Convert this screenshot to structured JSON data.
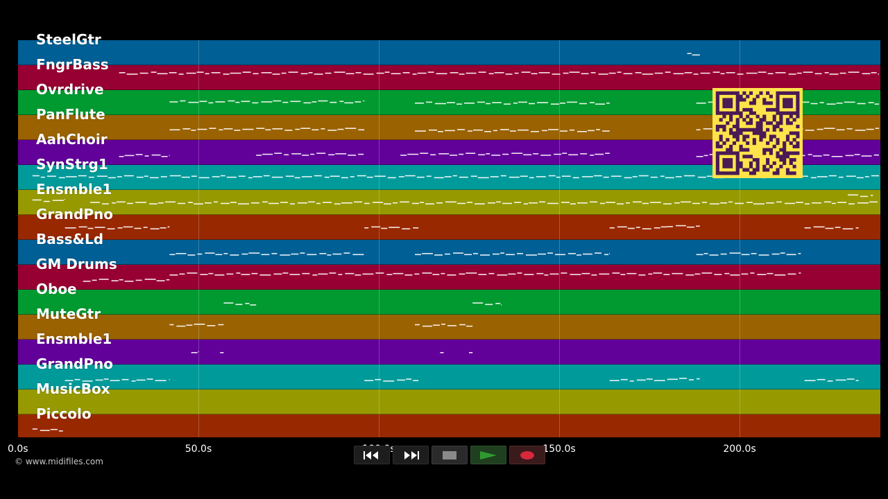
{
  "app": {
    "timeline_unit": "s",
    "copyright": "© www.midifiles.com"
  },
  "tracks": [
    {
      "label": "SteelGtr",
      "color": "#005f94"
    },
    {
      "label": "FngrBass",
      "color": "#970032"
    },
    {
      "label": "Ovrdrive",
      "color": "#009a30"
    },
    {
      "label": "PanFlute",
      "color": "#9a6200"
    },
    {
      "label": "AahChoir",
      "color": "#62009a"
    },
    {
      "label": "SynStrg1",
      "color": "#009a9a"
    },
    {
      "label": "Ensmble1",
      "color": "#969a00"
    },
    {
      "label": "GrandPno",
      "color": "#982800"
    },
    {
      "label": "Bass&Ld",
      "color": "#005f94"
    },
    {
      "label": "GM Drums",
      "color": "#970032"
    },
    {
      "label": "Oboe",
      "color": "#009a30"
    },
    {
      "label": "MuteGtr",
      "color": "#9a6200"
    },
    {
      "label": "Ensmble1",
      "color": "#62009a"
    },
    {
      "label": "GrandPno",
      "color": "#009a9a"
    },
    {
      "label": "MusicBox",
      "color": "#969a00"
    },
    {
      "label": "Piccolo",
      "color": "#982800"
    }
  ],
  "timeline": {
    "max_seconds": 240,
    "ticks": [
      {
        "label": "0.0s",
        "seconds": 0
      },
      {
        "label": "50.0s",
        "seconds": 50
      },
      {
        "label": "100.0s",
        "seconds": 100
      },
      {
        "label": "150.0s",
        "seconds": 150
      },
      {
        "label": "200.0s",
        "seconds": 200
      }
    ]
  },
  "notes_by_track": [
    [
      [
        185.5,
        189,
        0.45
      ]
    ],
    [
      [
        28,
        240,
        0.7
      ]
    ],
    [
      [
        42,
        96,
        0.55
      ],
      [
        110,
        164,
        0.5
      ],
      [
        188,
        240,
        0.5
      ]
    ],
    [
      [
        42,
        96,
        0.45
      ],
      [
        110,
        164,
        0.4
      ],
      [
        188,
        240,
        0.45
      ]
    ],
    [
      [
        28,
        42,
        0.4
      ],
      [
        66,
        96,
        0.45
      ],
      [
        106,
        164,
        0.45
      ],
      [
        188,
        240,
        0.4
      ]
    ],
    [
      [
        4,
        240,
        0.55
      ]
    ],
    [
      [
        4,
        13,
        0.6
      ],
      [
        20,
        240,
        0.5
      ],
      [
        230,
        237,
        0.8
      ]
    ],
    [
      [
        13,
        42,
        0.5
      ],
      [
        96,
        111,
        0.5
      ],
      [
        164,
        180,
        0.5
      ],
      [
        180,
        189,
        0.55
      ],
      [
        218,
        233,
        0.5
      ]
    ],
    [
      [
        42,
        96,
        0.45
      ],
      [
        110,
        164,
        0.45
      ],
      [
        188,
        217,
        0.45
      ]
    ],
    [
      [
        18,
        42,
        0.4
      ],
      [
        42,
        217,
        0.65
      ]
    ],
    [
      [
        57,
        66,
        0.45
      ],
      [
        126,
        134,
        0.45
      ]
    ],
    [
      [
        42,
        57,
        0.6
      ],
      [
        110,
        126,
        0.6
      ]
    ],
    [
      [
        48,
        50,
        0.5
      ],
      [
        56,
        57,
        0.5
      ],
      [
        117,
        118,
        0.5
      ],
      [
        125,
        126,
        0.5
      ]
    ],
    [
      [
        13,
        42,
        0.4
      ],
      [
        96,
        111,
        0.4
      ],
      [
        164,
        180,
        0.4
      ],
      [
        180,
        189,
        0.45
      ],
      [
        218,
        233,
        0.4
      ]
    ],
    [],
    [
      [
        4,
        13,
        0.4
      ]
    ]
  ],
  "transport": {
    "rewind": "rewind-icon",
    "fast_forward": "fast-forward-icon",
    "stop": "stop-icon",
    "play": "play-icon",
    "record": "record-icon",
    "colors": {
      "play": "#2f9a2f",
      "record": "#d8283c",
      "button_bg": "#1d1d1d"
    }
  },
  "qr_code": {
    "color": "#ffe34a",
    "module_color": "#4a1a55"
  }
}
